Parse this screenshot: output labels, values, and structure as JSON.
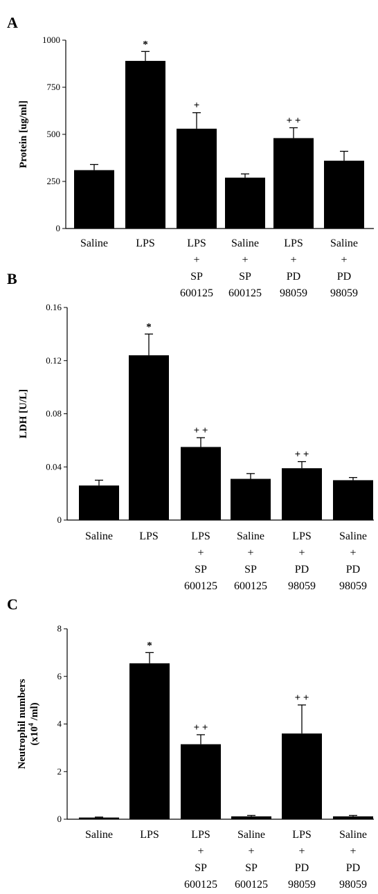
{
  "chart_data": [
    {
      "type": "bar",
      "panel_label": "A",
      "ylabel": "Protein [ug/ml]",
      "ylim": [
        0,
        1000
      ],
      "yticks": [
        "0",
        "250",
        "500",
        "750",
        "1000"
      ],
      "categories": [
        [
          "Saline"
        ],
        [
          "LPS"
        ],
        [
          "LPS",
          "+",
          "SP",
          "600125"
        ],
        [
          "Saline",
          "+",
          "SP",
          "600125"
        ],
        [
          "LPS",
          "+",
          "PD",
          "98059"
        ],
        [
          "Saline",
          "+",
          "PD",
          "98059"
        ]
      ],
      "values": [
        310,
        890,
        530,
        270,
        480,
        360
      ],
      "errors": [
        30,
        50,
        85,
        20,
        55,
        50
      ],
      "annotations": [
        "",
        "*",
        "+",
        "",
        "+ +",
        ""
      ],
      "bar_color": "#000000"
    },
    {
      "type": "bar",
      "panel_label": "B",
      "ylabel": "LDH [U/L]",
      "ylim": [
        0,
        0.16
      ],
      "yticks": [
        "0",
        "0.04",
        "0.08",
        "0.12",
        "0.16"
      ],
      "categories": [
        [
          "Saline"
        ],
        [
          "LPS"
        ],
        [
          "LPS",
          "+",
          "SP",
          "600125"
        ],
        [
          "Saline",
          "+",
          "SP",
          "600125"
        ],
        [
          "LPS",
          "+",
          "PD",
          "98059"
        ],
        [
          "Saline",
          "+",
          "PD",
          "98059"
        ]
      ],
      "values": [
        0.026,
        0.124,
        0.055,
        0.031,
        0.039,
        0.03
      ],
      "errors": [
        0.004,
        0.016,
        0.007,
        0.004,
        0.005,
        0.002
      ],
      "annotations": [
        "",
        "*",
        "+ +",
        "",
        "+ +",
        ""
      ],
      "bar_color": "#000000"
    },
    {
      "type": "bar",
      "panel_label": "C",
      "ylabel": "Neutrophil numbers",
      "ylabel_line2": "(x10",
      "ylabel_sup": "4",
      "ylabel_line2_end": " /ml)",
      "ylim": [
        0,
        8
      ],
      "yticks": [
        "0",
        "2",
        "4",
        "6",
        "8"
      ],
      "categories": [
        [
          "Saline"
        ],
        [
          "LPS"
        ],
        [
          "LPS",
          "+",
          "SP",
          "600125"
        ],
        [
          "Saline",
          "+",
          "SP",
          "600125"
        ],
        [
          "LPS",
          "+",
          "PD",
          "98059"
        ],
        [
          "Saline",
          "+",
          "PD",
          "98059"
        ]
      ],
      "values": [
        0.07,
        6.55,
        3.15,
        0.12,
        3.6,
        0.12
      ],
      "errors": [
        0.02,
        0.45,
        0.4,
        0.04,
        1.2,
        0.04
      ],
      "annotations": [
        "",
        "*",
        "+ +",
        "",
        "+ +",
        ""
      ],
      "bar_color": "#000000"
    }
  ]
}
